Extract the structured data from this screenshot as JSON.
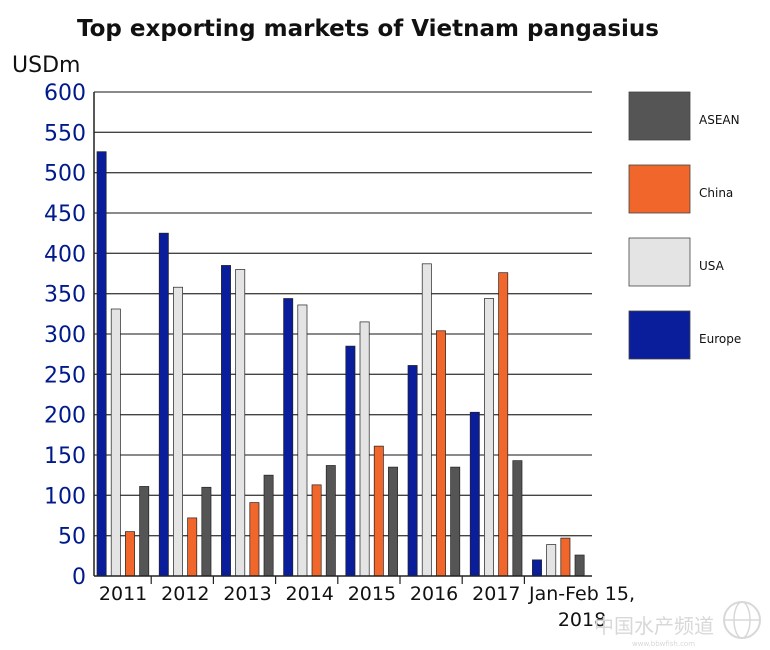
{
  "chart_data": {
    "type": "bar",
    "title": "Top exporting markets of Vietnam pangasius",
    "ylabel": "USDm",
    "xlabel": "",
    "ylim": [
      0,
      600
    ],
    "yticks": [
      0,
      50,
      100,
      150,
      200,
      250,
      300,
      350,
      400,
      450,
      500,
      550,
      600
    ],
    "grid": true,
    "legend_position": "right",
    "categories": [
      "2011",
      "2012",
      "2013",
      "2014",
      "2015",
      "2016",
      "2017",
      "Jan-Feb 15, 2018"
    ],
    "series": [
      {
        "name": "Europe",
        "color": "#0a1e9c",
        "values": [
          526,
          425,
          385,
          344,
          285,
          261,
          203,
          20
        ]
      },
      {
        "name": "USA",
        "color": "#e4e4e4",
        "values": [
          331,
          358,
          380,
          336,
          315,
          387,
          344,
          39
        ]
      },
      {
        "name": "China",
        "color": "#f0662b",
        "values": [
          55,
          72,
          91,
          113,
          161,
          304,
          376,
          47
        ]
      },
      {
        "name": "ASEAN",
        "color": "#555555",
        "values": [
          111,
          110,
          125,
          137,
          135,
          135,
          143,
          26
        ]
      }
    ],
    "legend_order": [
      "ASEAN",
      "China",
      "USA",
      "Europe"
    ],
    "x_tick_lines": [
      "2011",
      "2012",
      "2013",
      "2014",
      "2015",
      "2016",
      "2017",
      "Jan-Feb 15,",
      "2018"
    ]
  },
  "watermark": {
    "text": "中国水产频道",
    "subtext": "www.bbwfish.com"
  }
}
